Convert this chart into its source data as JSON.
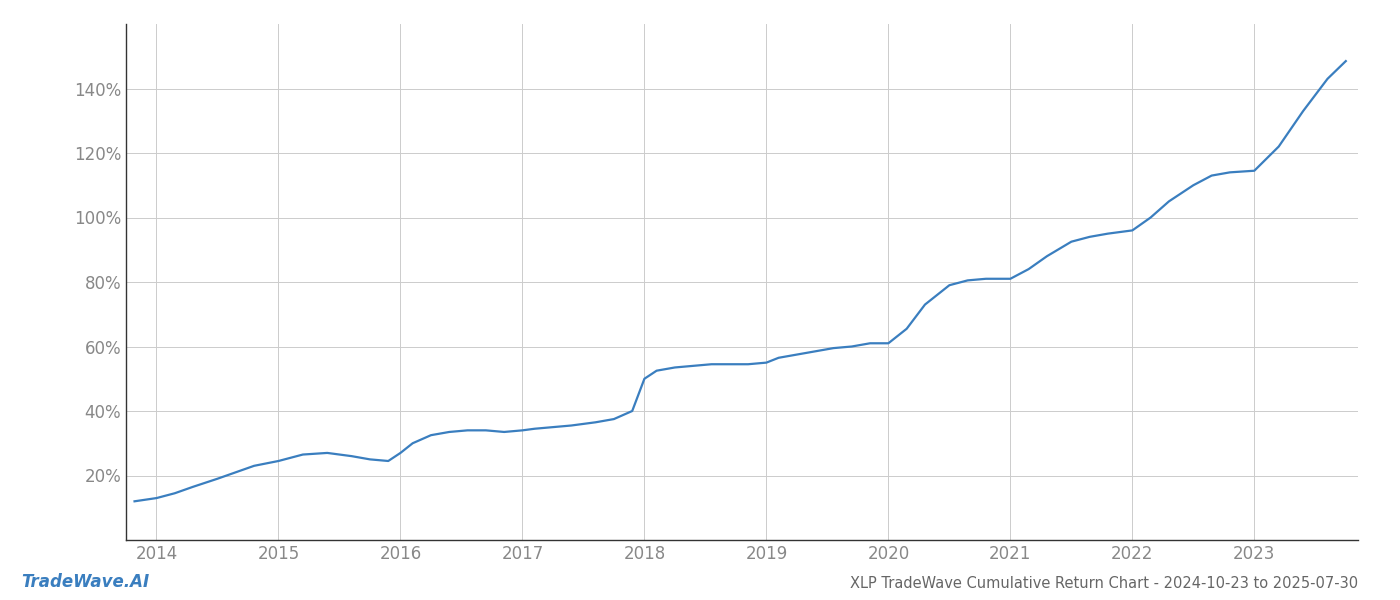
{
  "title": "XLP TradeWave Cumulative Return Chart - 2024-10-23 to 2025-07-30",
  "watermark": "TradeWave.AI",
  "line_color": "#3a7ebf",
  "background_color": "#ffffff",
  "grid_color": "#cccccc",
  "x_years": [
    2014,
    2015,
    2016,
    2017,
    2018,
    2019,
    2020,
    2021,
    2022,
    2023
  ],
  "data_x": [
    2013.82,
    2014.0,
    2014.15,
    2014.3,
    2014.5,
    2014.65,
    2014.8,
    2015.0,
    2015.1,
    2015.2,
    2015.4,
    2015.6,
    2015.75,
    2015.9,
    2016.0,
    2016.1,
    2016.25,
    2016.4,
    2016.55,
    2016.7,
    2016.85,
    2017.0,
    2017.1,
    2017.25,
    2017.4,
    2017.6,
    2017.75,
    2017.9,
    2018.0,
    2018.1,
    2018.25,
    2018.4,
    2018.55,
    2018.7,
    2018.85,
    2019.0,
    2019.1,
    2019.25,
    2019.4,
    2019.55,
    2019.7,
    2019.85,
    2020.0,
    2020.15,
    2020.3,
    2020.5,
    2020.65,
    2020.8,
    2021.0,
    2021.15,
    2021.3,
    2021.5,
    2021.65,
    2021.8,
    2022.0,
    2022.15,
    2022.3,
    2022.5,
    2022.65,
    2022.8,
    2023.0,
    2023.2,
    2023.4,
    2023.6,
    2023.75
  ],
  "data_y": [
    12.0,
    13.0,
    14.5,
    16.5,
    19.0,
    21.0,
    23.0,
    24.5,
    25.5,
    26.5,
    27.0,
    26.0,
    25.0,
    24.5,
    27.0,
    30.0,
    32.5,
    33.5,
    34.0,
    34.0,
    33.5,
    34.0,
    34.5,
    35.0,
    35.5,
    36.5,
    37.5,
    40.0,
    50.0,
    52.5,
    53.5,
    54.0,
    54.5,
    54.5,
    54.5,
    55.0,
    56.5,
    57.5,
    58.5,
    59.5,
    60.0,
    61.0,
    61.0,
    65.5,
    73.0,
    79.0,
    80.5,
    81.0,
    81.0,
    84.0,
    88.0,
    92.5,
    94.0,
    95.0,
    96.0,
    100.0,
    105.0,
    110.0,
    113.0,
    114.0,
    114.5,
    122.0,
    133.0,
    143.0,
    148.5
  ],
  "ylim": [
    0,
    160
  ],
  "yticks": [
    20,
    40,
    60,
    80,
    100,
    120,
    140
  ],
  "xlim": [
    2013.75,
    2023.85
  ],
  "title_fontsize": 10.5,
  "watermark_fontsize": 12,
  "tick_fontsize": 12,
  "tick_color": "#888888",
  "spine_color": "#333333",
  "line_width": 1.6
}
